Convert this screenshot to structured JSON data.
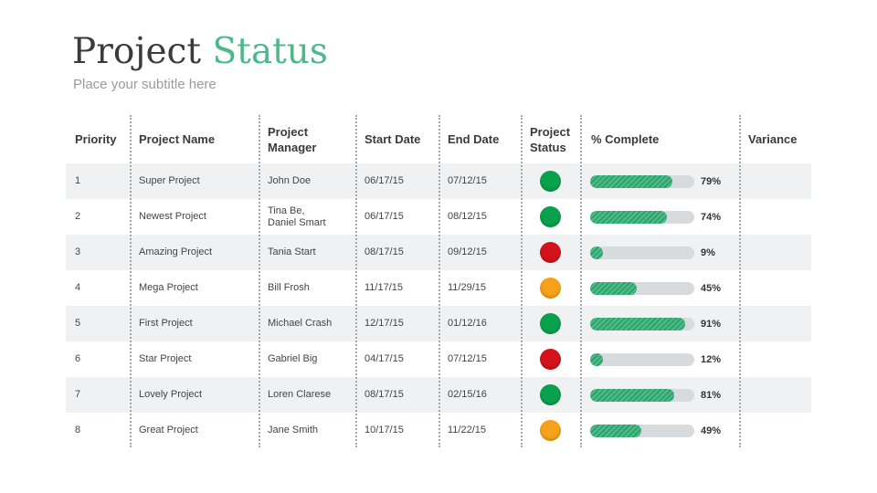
{
  "header": {
    "title_main": "Project",
    "title_accent": "Status",
    "subtitle": "Place your subtitle here"
  },
  "colors": {
    "accent": "#4cb98a",
    "progress": "#27a56a",
    "status_green": "#0aa14c",
    "status_red": "#d4121b",
    "status_orange": "#f7a11a"
  },
  "table": {
    "columns": [
      "Priority",
      "Project Name",
      "Project\nManager",
      "Start Date",
      "End Date",
      "Project\nStatus",
      "% Complete",
      "Variance"
    ],
    "rows": [
      {
        "priority": "1",
        "name": "Super Project",
        "manager": "John Doe",
        "start": "06/17/15",
        "end": "07/12/15",
        "status": "green",
        "percent": 79,
        "percent_label": "79%",
        "variance": ""
      },
      {
        "priority": "2",
        "name": "Newest Project",
        "manager": "Tina Be,\nDaniel Smart",
        "start": "06/17/15",
        "end": "08/12/15",
        "status": "green",
        "percent": 74,
        "percent_label": "74%",
        "variance": ""
      },
      {
        "priority": "3",
        "name": "Amazing Project",
        "manager": "Tania Start",
        "start": "08/17/15",
        "end": "09/12/15",
        "status": "red",
        "percent": 9,
        "percent_label": "9%",
        "variance": ""
      },
      {
        "priority": "4",
        "name": "Mega Project",
        "manager": "Bill Frosh",
        "start": "11/17/15",
        "end": "11/29/15",
        "status": "orange",
        "percent": 45,
        "percent_label": "45%",
        "variance": ""
      },
      {
        "priority": "5",
        "name": "First Project",
        "manager": "Michael Crash",
        "start": "12/17/15",
        "end": "01/12/16",
        "status": "green",
        "percent": 91,
        "percent_label": "91%",
        "variance": ""
      },
      {
        "priority": "6",
        "name": "Star Project",
        "manager": "Gabriel Big",
        "start": "04/17/15",
        "end": "07/12/15",
        "status": "red",
        "percent": 12,
        "percent_label": "12%",
        "variance": ""
      },
      {
        "priority": "7",
        "name": "Lovely Project",
        "manager": "Loren Clarese",
        "start": "08/17/15",
        "end": "02/15/16",
        "status": "green",
        "percent": 81,
        "percent_label": "81%",
        "variance": ""
      },
      {
        "priority": "8",
        "name": "Great Project",
        "manager": "Jane Smith",
        "start": "10/17/15",
        "end": "11/22/15",
        "status": "orange",
        "percent": 49,
        "percent_label": "49%",
        "variance": ""
      }
    ]
  }
}
